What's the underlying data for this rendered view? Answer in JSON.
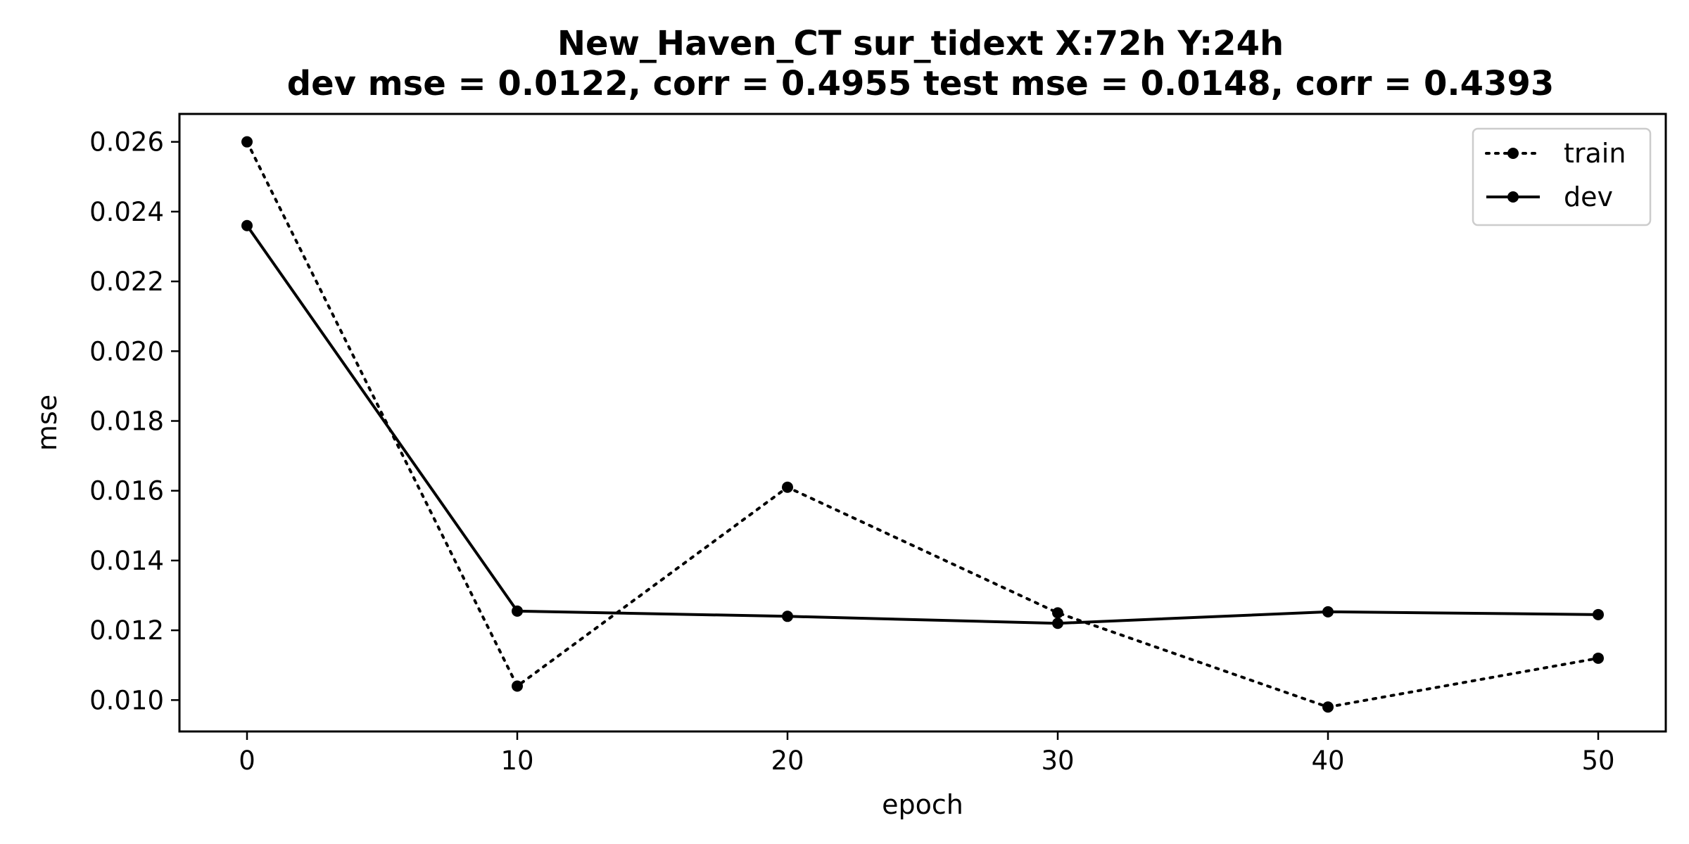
{
  "chart_data": {
    "type": "line",
    "title": "New_Haven_CT   sur_tidext   X:72h   Y:24h",
    "subtitle": "dev mse = 0.0122, corr = 0.4955   test mse = 0.0148, corr = 0.4393",
    "xlabel": "epoch",
    "ylabel": "mse",
    "x": [
      0,
      10,
      20,
      30,
      40,
      50
    ],
    "xlim": [
      -2.5,
      52.5
    ],
    "ylim": [
      0.0091,
      0.0268
    ],
    "xticks": [
      0,
      10,
      20,
      30,
      40,
      50
    ],
    "xtick_labels": [
      "0",
      "10",
      "20",
      "30",
      "40",
      "50"
    ],
    "yticks": [
      0.01,
      0.012,
      0.014,
      0.016,
      0.018,
      0.02,
      0.022,
      0.024,
      0.026
    ],
    "ytick_labels": [
      "0.010",
      "0.012",
      "0.014",
      "0.016",
      "0.018",
      "0.020",
      "0.022",
      "0.024",
      "0.026"
    ],
    "grid": false,
    "legend_position": "top-right",
    "series": [
      {
        "name": "train",
        "line_style": "dotted",
        "marker": "circle",
        "color": "#000000",
        "values": [
          0.026,
          0.0104,
          0.0161,
          0.0125,
          0.0098,
          0.0112
        ]
      },
      {
        "name": "dev",
        "line_style": "solid",
        "marker": "circle",
        "color": "#000000",
        "values": [
          0.0236,
          0.01255,
          0.0124,
          0.0122,
          0.01253,
          0.01245
        ]
      }
    ]
  }
}
